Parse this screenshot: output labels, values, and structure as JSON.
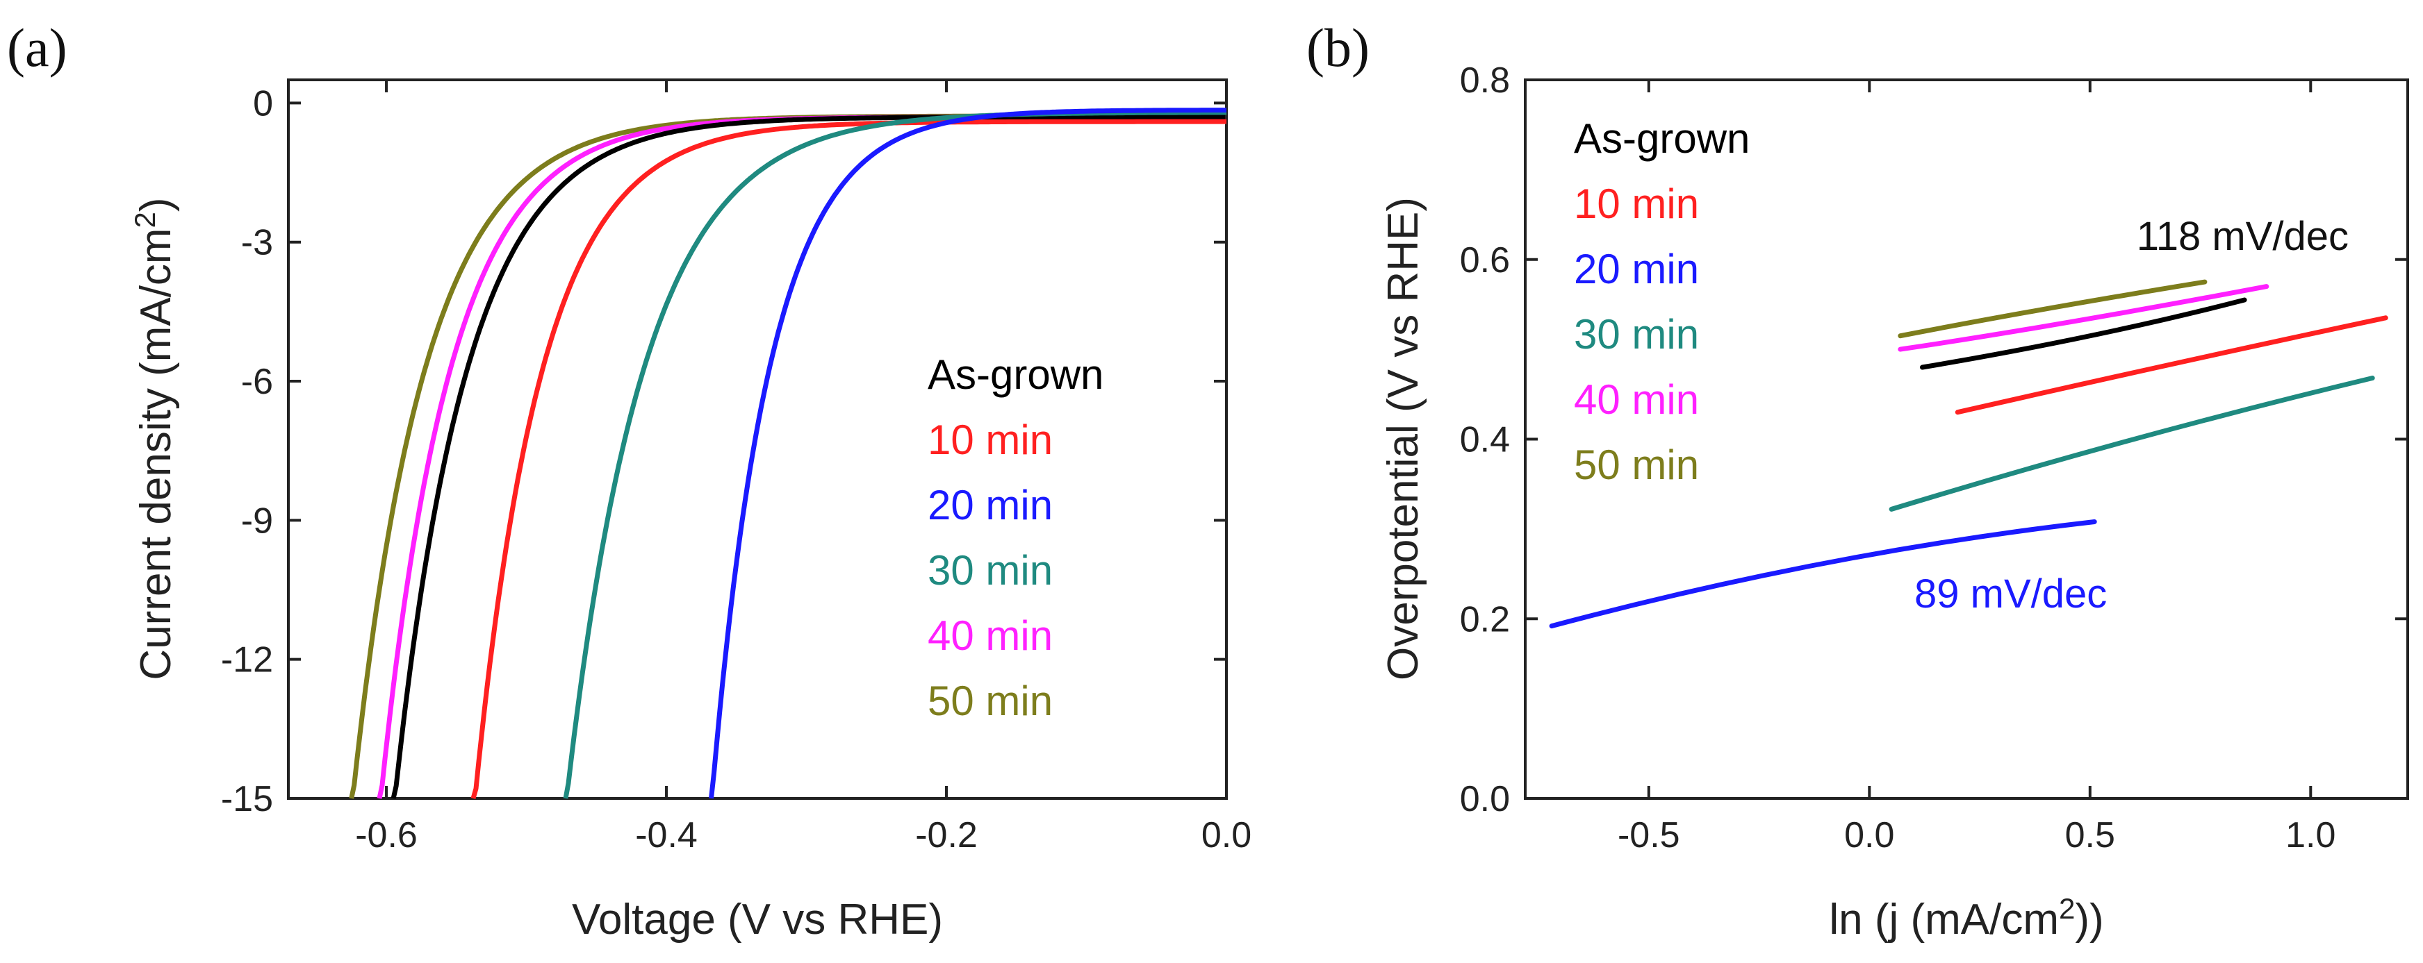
{
  "colors": {
    "As-grown": "#000000",
    "10 min": "#ff2020",
    "20 min": "#1a1aff",
    "30 min": "#1f8a80",
    "40 min": "#ff20ff",
    "50 min": "#7d7d1c"
  },
  "chart_data": [
    {
      "panel": "(a)",
      "type": "line",
      "title": "",
      "xlabel": "Voltage (V vs RHE)",
      "ylabel": "Current density (mA/cm²)",
      "ylabel_main": "Current density (mA/cm",
      "ylabel_sup": "2",
      "ylabel_end": ")",
      "xlim": [
        -0.67,
        0.0
      ],
      "ylim": [
        -15,
        0.5
      ],
      "xticks": [
        -0.6,
        -0.4,
        -0.2,
        0.0
      ],
      "xtick_labels": [
        "-0.6",
        "-0.4",
        "-0.2",
        "0.0"
      ],
      "yticks": [
        0,
        -3,
        -6,
        -9,
        -12,
        -15
      ],
      "ytick_labels": [
        "0",
        "-3",
        "-6",
        "-9",
        "-12",
        "-15"
      ],
      "legend": [
        "As-grown",
        "10 min",
        "20 min",
        "30 min",
        "40 min",
        "50 min"
      ],
      "series": [
        {
          "name": "50 min",
          "onset": -0.625,
          "tafel": 0.052,
          "base": -0.28
        },
        {
          "name": "40 min",
          "onset": -0.605,
          "tafel": 0.05,
          "base": -0.3
        },
        {
          "name": "As-grown",
          "onset": -0.595,
          "tafel": 0.052,
          "base": -0.3
        },
        {
          "name": "10 min",
          "onset": -0.538,
          "tafel": 0.048,
          "base": -0.4
        },
        {
          "name": "30 min",
          "onset": -0.472,
          "tafel": 0.056,
          "base": -0.2
        },
        {
          "name": "20 min",
          "onset": -0.368,
          "tafel": 0.042,
          "base": -0.15
        }
      ]
    },
    {
      "panel": "(b)",
      "type": "line",
      "title": "",
      "xlabel": "ln (j (mA/cm²))",
      "xlabel_main": "ln (j (mA/cm",
      "xlabel_sup": "2",
      "xlabel_end": "))",
      "ylabel": "Overpotential (V vs RHE)",
      "xlim": [
        -0.78,
        1.22
      ],
      "ylim": [
        0.0,
        0.8
      ],
      "xticks": [
        -0.5,
        0.0,
        0.5,
        1.0
      ],
      "xtick_labels": [
        "-0.5",
        "0.0",
        "0.5",
        "1.0"
      ],
      "yticks": [
        0.0,
        0.2,
        0.4,
        0.6,
        0.8
      ],
      "ytick_labels": [
        "0.0",
        "0.2",
        "0.4",
        "0.6",
        "0.8"
      ],
      "legend": [
        "As-grown",
        "10 min",
        "20 min",
        "30 min",
        "40 min",
        "50 min"
      ],
      "annotations": [
        "118 mV/dec",
        "89 mV/dec"
      ],
      "series": [
        {
          "name": "50 min",
          "x": [
            0.07,
            0.4,
            0.76
          ],
          "y": [
            0.515,
            0.545,
            0.575
          ]
        },
        {
          "name": "40 min",
          "x": [
            0.07,
            0.45,
            0.9
          ],
          "y": [
            0.5,
            0.53,
            0.57
          ]
        },
        {
          "name": "As-grown",
          "x": [
            0.12,
            0.5,
            0.85
          ],
          "y": [
            0.48,
            0.515,
            0.555
          ]
        },
        {
          "name": "10 min",
          "x": [
            0.2,
            0.7,
            1.17
          ],
          "y": [
            0.43,
            0.485,
            0.535
          ]
        },
        {
          "name": "30 min",
          "x": [
            0.05,
            0.6,
            1.14
          ],
          "y": [
            0.322,
            0.4,
            0.468
          ]
        },
        {
          "name": "20 min",
          "x": [
            -0.72,
            -0.1,
            0.51
          ],
          "y": [
            0.192,
            0.262,
            0.308
          ]
        }
      ]
    }
  ]
}
